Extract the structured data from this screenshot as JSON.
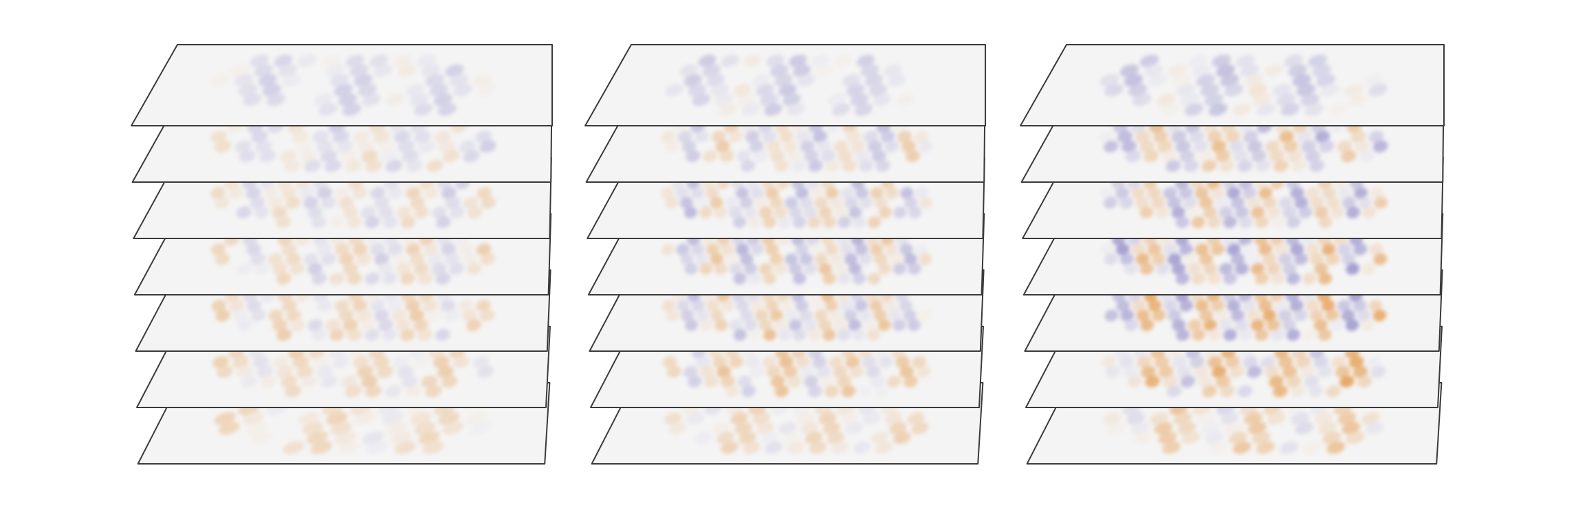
{
  "figure": {
    "description_visible_text": "",
    "colormap": {
      "negative": "#5a4fb0",
      "neutral": "#f4f4f4",
      "positive": "#e07a10",
      "outline": "#3a3a3a"
    },
    "stacks": [
      {
        "id": "stack-1",
        "slices": [
          {
            "index": 1,
            "bands": 12,
            "intensity": 0.25,
            "bias": -0.7
          },
          {
            "index": 2,
            "bands": 14,
            "intensity": 0.35,
            "bias": -0.1
          },
          {
            "index": 3,
            "bands": 16,
            "intensity": 0.4,
            "bias": 0.0
          },
          {
            "index": 4,
            "bands": 16,
            "intensity": 0.4,
            "bias": 0.2
          },
          {
            "index": 5,
            "bands": 16,
            "intensity": 0.4,
            "bias": 0.4
          },
          {
            "index": 6,
            "bands": 14,
            "intensity": 0.35,
            "bias": 0.6
          },
          {
            "index": 7,
            "bands": 10,
            "intensity": 0.3,
            "bias": 0.7
          }
        ]
      },
      {
        "id": "stack-2",
        "slices": [
          {
            "index": 1,
            "bands": 12,
            "intensity": 0.3,
            "bias": -0.6
          },
          {
            "index": 2,
            "bands": 16,
            "intensity": 0.5,
            "bias": 0.0
          },
          {
            "index": 3,
            "bands": 18,
            "intensity": 0.55,
            "bias": 0.0
          },
          {
            "index": 4,
            "bands": 18,
            "intensity": 0.6,
            "bias": 0.0
          },
          {
            "index": 5,
            "bands": 18,
            "intensity": 0.6,
            "bias": 0.1
          },
          {
            "index": 6,
            "bands": 16,
            "intensity": 0.5,
            "bias": 0.4
          },
          {
            "index": 7,
            "bands": 12,
            "intensity": 0.35,
            "bias": 0.5
          }
        ]
      },
      {
        "id": "stack-3",
        "slices": [
          {
            "index": 1,
            "bands": 12,
            "intensity": 0.35,
            "bias": -0.6
          },
          {
            "index": 2,
            "bands": 16,
            "intensity": 0.7,
            "bias": 0.0
          },
          {
            "index": 3,
            "bands": 18,
            "intensity": 0.75,
            "bias": 0.0
          },
          {
            "index": 4,
            "bands": 18,
            "intensity": 0.85,
            "bias": 0.0
          },
          {
            "index": 5,
            "bands": 18,
            "intensity": 0.85,
            "bias": 0.1
          },
          {
            "index": 6,
            "bands": 16,
            "intensity": 0.75,
            "bias": 0.35
          },
          {
            "index": 7,
            "bands": 12,
            "intensity": 0.45,
            "bias": 0.5
          }
        ]
      }
    ]
  }
}
